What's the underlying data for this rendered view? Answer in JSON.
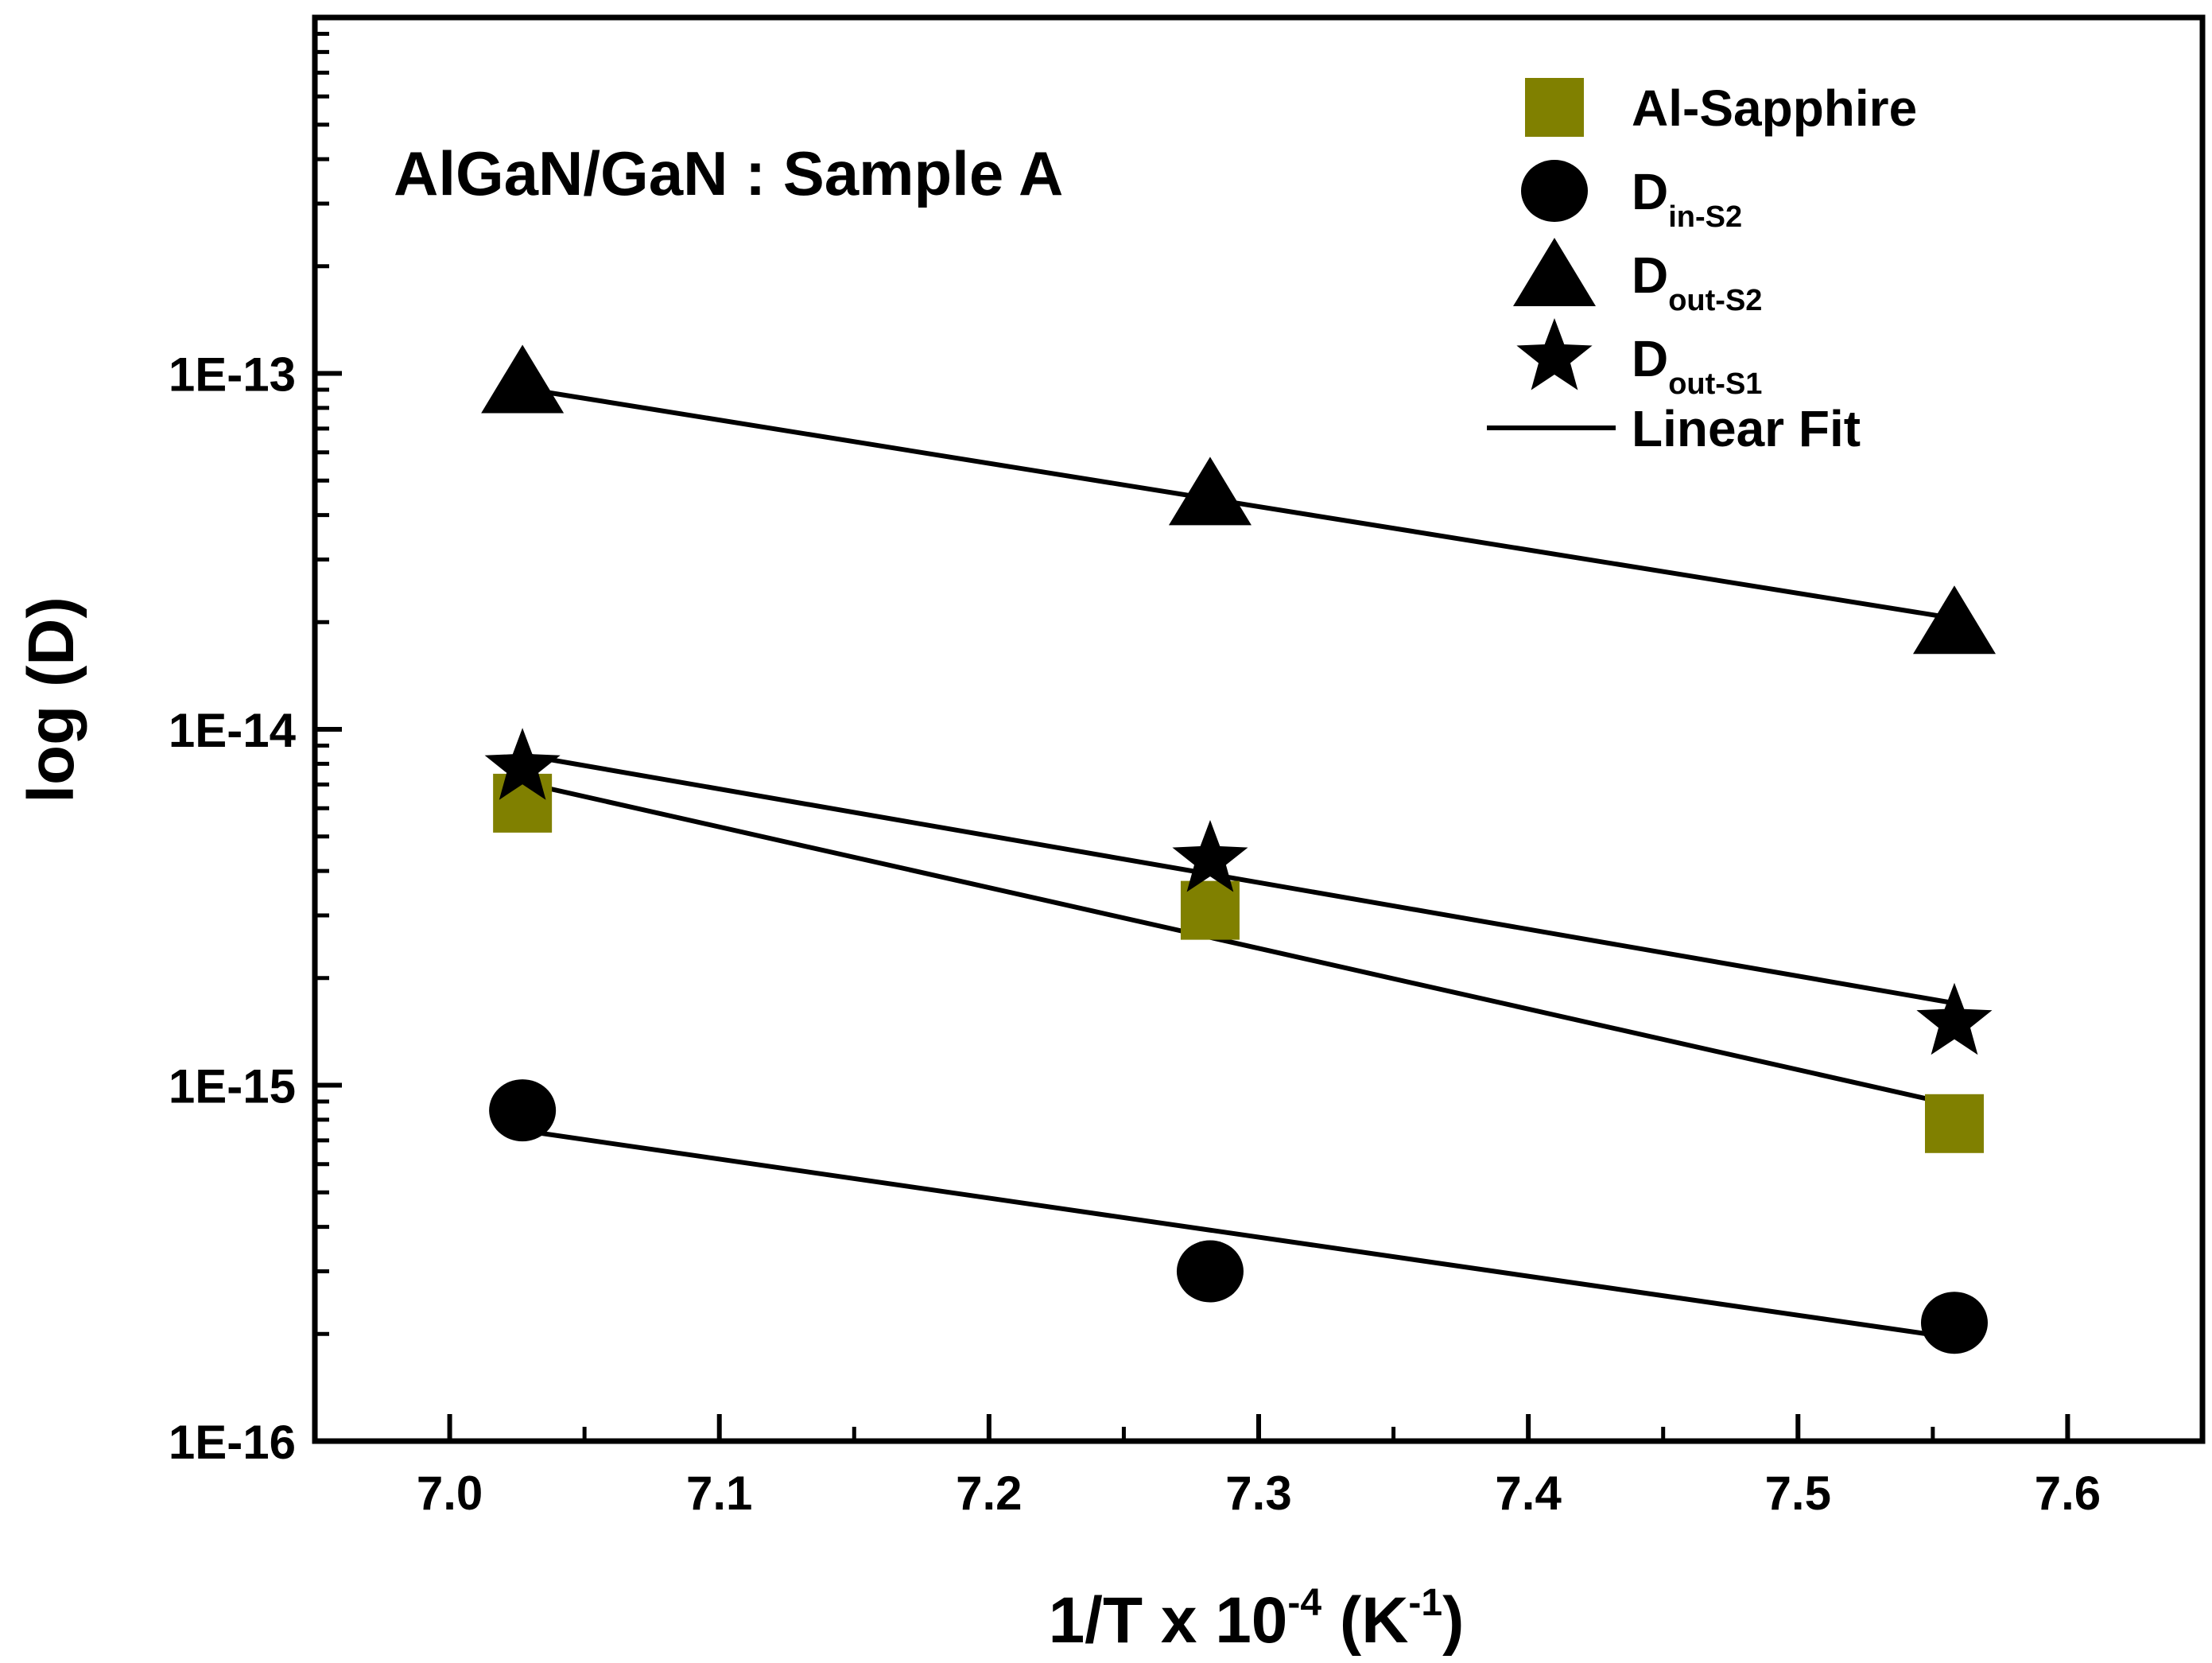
{
  "chart_data": {
    "type": "scatter",
    "annotation": "AlGaN/GaN : Sample A",
    "xlabel": {
      "base": "1/T x 10",
      "exp": "-4",
      "mid": " (K",
      "unit_exp": "-1",
      "tail": ")"
    },
    "ylabel": "log (D)",
    "xlim": [
      6.95,
      7.65
    ],
    "ylim": [
      1e-16,
      1e-12
    ],
    "yscale": "log",
    "x_ticks": [
      7.0,
      7.1,
      7.2,
      7.3,
      7.4,
      7.5,
      7.6
    ],
    "x_tick_labels": [
      "7.0",
      "7.1",
      "7.2",
      "7.3",
      "7.4",
      "7.5",
      "7.6"
    ],
    "y_ticks": [
      1e-16,
      1e-15,
      1e-14,
      1e-13
    ],
    "y_tick_labels": [
      "1E-16",
      "1E-15",
      "1E-14",
      "1E-13"
    ],
    "series": [
      {
        "name": "Al-Sapphire",
        "sub": "",
        "marker": "square",
        "color": "#808000",
        "x": [
          7.027,
          7.282,
          7.558
        ],
        "y": [
          6.2e-15,
          3.1e-15,
          7.8e-16
        ],
        "fit": {
          "x": [
            7.03,
            7.558
          ],
          "y": [
            7e-15,
            8.8e-16
          ]
        }
      },
      {
        "name": "D",
        "sub": "in-S2",
        "marker": "circle",
        "color": "#000000",
        "x": [
          7.027,
          7.282,
          7.558
        ],
        "y": [
          8.5e-16,
          3e-16,
          2.15e-16
        ],
        "fit": {
          "x": [
            7.03,
            7.558
          ],
          "y": [
            7.4e-16,
            1.95e-16
          ]
        }
      },
      {
        "name": "D",
        "sub": "out-S2",
        "marker": "triangle",
        "color": "#000000",
        "x": [
          7.027,
          7.282,
          7.558
        ],
        "y": [
          9.5e-14,
          4.6e-14,
          2e-14
        ],
        "fit": {
          "x": [
            7.03,
            7.558
          ],
          "y": [
            9e-14,
            2.05e-14
          ]
        }
      },
      {
        "name": "D",
        "sub": "out-S1",
        "marker": "star",
        "color": "#000000",
        "x": [
          7.027,
          7.282,
          7.558
        ],
        "y": [
          7.8e-15,
          4.3e-15,
          1.5e-15
        ],
        "fit": {
          "x": [
            7.03,
            7.558
          ],
          "y": [
            8.4e-15,
            1.7e-15
          ]
        }
      }
    ],
    "legend": {
      "position": "top-right",
      "fit_label": "Linear Fit"
    }
  }
}
